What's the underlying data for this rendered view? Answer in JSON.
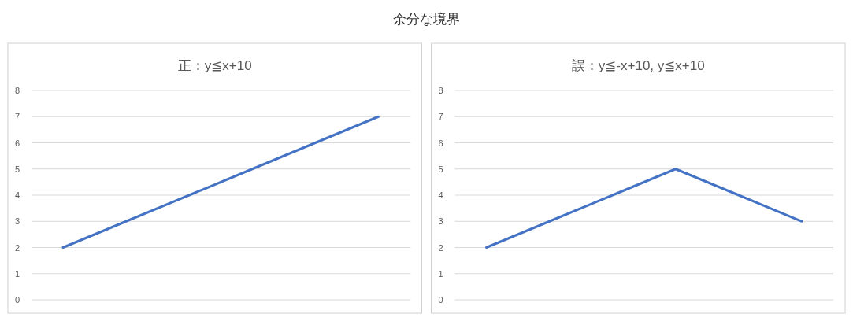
{
  "chart_data": [
    {
      "type": "other",
      "title": "余分な境界"
    },
    {
      "type": "line",
      "title": "正：y≦x+10",
      "categories": [
        null,
        null,
        null,
        null,
        null,
        null
      ],
      "series": [
        {
          "color": "#4472c4",
          "values": [
            2,
            3,
            4,
            5,
            6,
            7
          ]
        }
      ],
      "ylim": [
        0,
        8
      ],
      "yticks": [
        0,
        1,
        2,
        3,
        4,
        5,
        6,
        7,
        8
      ],
      "grid": "y",
      "tick_labels": "y"
    },
    {
      "type": "line",
      "title": "誤：y≦-x+10, y≦x+10",
      "categories": [
        null,
        null,
        null,
        null,
        null,
        null
      ],
      "series": [
        {
          "color": "#4472c4",
          "values": [
            2,
            3,
            4,
            5,
            4,
            3
          ]
        }
      ],
      "ylim": [
        0,
        8
      ],
      "yticks": [
        0,
        1,
        2,
        3,
        4,
        5,
        6,
        7,
        8
      ],
      "grid": "y",
      "tick_labels": "y"
    }
  ]
}
